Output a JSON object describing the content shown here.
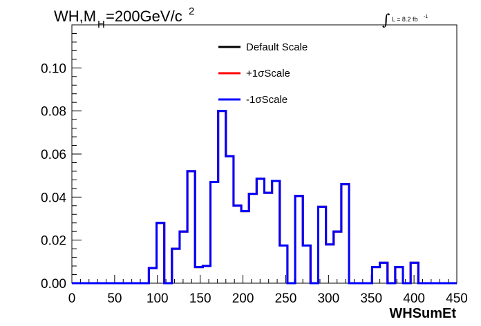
{
  "header": {
    "title_main": "WH,M",
    "title_sub": "H",
    "title_rest": "=200GeV/c",
    "title_sup": "2",
    "lumi_integral": "∫",
    "lumi_text": "L = 8.2 fb",
    "lumi_sup": "-1"
  },
  "chart_data": {
    "type": "line",
    "xlabel": "WHSumEt",
    "ylabel": "",
    "xlim": [
      0,
      450
    ],
    "ylim": [
      0,
      0.12
    ],
    "grid": false,
    "legend_position": "top-center",
    "x_ticks": [
      0,
      50,
      100,
      150,
      200,
      250,
      300,
      350,
      400,
      450
    ],
    "x_tick_labels": [
      "0",
      "50",
      "100",
      "150",
      "200",
      "250",
      "300",
      "350",
      "400",
      "450"
    ],
    "y_ticks": [
      0,
      0.02,
      0.04,
      0.06,
      0.08,
      0.1
    ],
    "y_tick_labels": [
      "0.00",
      "0.02",
      "0.04",
      "0.06",
      "0.08",
      "0.10"
    ],
    "bin_edges": [
      0,
      9,
      18,
      27,
      36,
      45,
      54,
      63,
      72,
      81,
      90,
      99,
      108,
      117,
      126,
      135,
      144,
      153,
      162,
      171,
      180,
      189,
      198,
      207,
      216,
      225,
      234,
      243,
      252,
      261,
      270,
      279,
      288,
      297,
      306,
      315,
      324,
      333,
      342,
      351,
      360,
      369,
      378,
      387,
      396,
      405,
      414,
      423,
      432,
      441,
      450
    ],
    "series": [
      {
        "name": "Default Scale",
        "color": "#000000",
        "values": [
          0,
          0,
          0,
          0,
          0,
          0,
          0,
          0,
          0,
          0,
          0.007,
          0.028,
          0,
          0.016,
          0.024,
          0.052,
          0.0075,
          0.008,
          0.047,
          0.08,
          0.059,
          0.036,
          0.0335,
          0.0415,
          0.0485,
          0.042,
          0.0475,
          0.0175,
          0,
          0.0405,
          0.0175,
          0,
          0.0355,
          0.018,
          0.024,
          0.046,
          0,
          0,
          0,
          0.0075,
          0.0095,
          0,
          0.0075,
          0,
          0.0095,
          0,
          0,
          0,
          0,
          0
        ]
      },
      {
        "name": "+1σScale",
        "color": "#ff0000",
        "values": [
          0,
          0,
          0,
          0,
          0,
          0,
          0,
          0,
          0,
          0,
          0.007,
          0.028,
          0,
          0.016,
          0.024,
          0.052,
          0.0075,
          0.008,
          0.047,
          0.08,
          0.059,
          0.036,
          0.0335,
          0.0415,
          0.0485,
          0.042,
          0.0475,
          0.0175,
          0,
          0.0405,
          0.0175,
          0,
          0.0355,
          0.018,
          0.024,
          0.046,
          0,
          0,
          0,
          0.0075,
          0.0095,
          0,
          0.0075,
          0,
          0.0095,
          0,
          0,
          0,
          0,
          0
        ]
      },
      {
        "name": "-1σScale",
        "color": "#0000ff",
        "values": [
          0,
          0,
          0,
          0,
          0,
          0,
          0,
          0,
          0,
          0,
          0.007,
          0.028,
          0,
          0.016,
          0.024,
          0.052,
          0.0075,
          0.008,
          0.047,
          0.08,
          0.059,
          0.036,
          0.0335,
          0.0415,
          0.0485,
          0.042,
          0.0475,
          0.0175,
          0,
          0.0405,
          0.0175,
          0,
          0.0355,
          0.018,
          0.024,
          0.046,
          0,
          0,
          0,
          0.0075,
          0.0095,
          0,
          0.0075,
          0,
          0.0095,
          0,
          0,
          0,
          0,
          0
        ]
      }
    ]
  }
}
